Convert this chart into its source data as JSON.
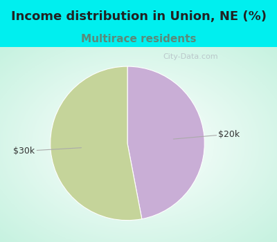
{
  "title": "Income distribution in Union, NE (%)",
  "subtitle": "Multirace residents",
  "title_color": "#222222",
  "subtitle_color": "#5a8a7a",
  "background_cyan": "#00EFEF",
  "slices": [
    47,
    53
  ],
  "labels": [
    "$20k",
    "$30k"
  ],
  "colors": [
    "#c9aed6",
    "#c5d49a"
  ],
  "watermark": "City-Data.com",
  "title_fontsize": 13,
  "subtitle_fontsize": 11,
  "label_fontsize": 9,
  "label_color": "#333333",
  "line_color": "#aaaaaa"
}
